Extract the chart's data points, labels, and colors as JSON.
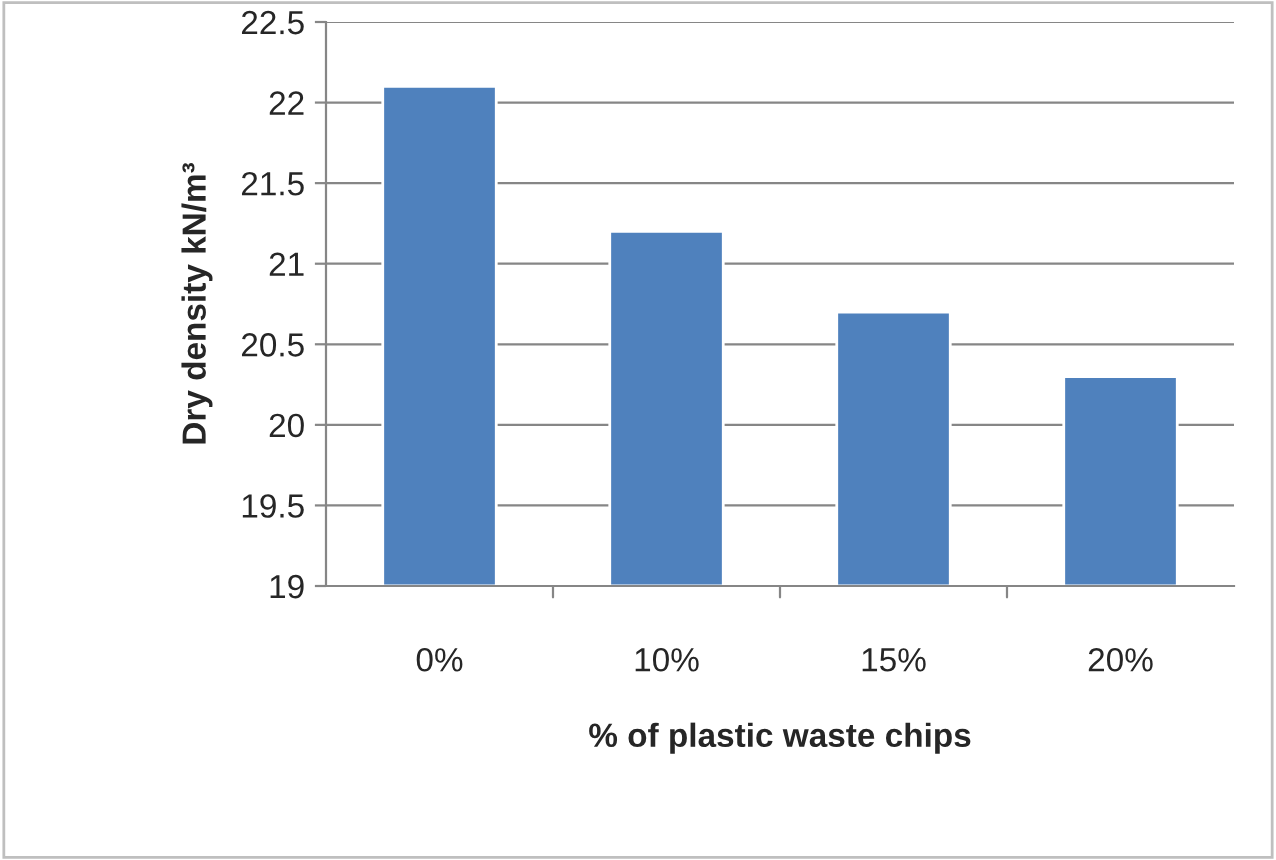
{
  "chart_data": {
    "type": "bar",
    "xlabel": "% of plastic waste chips",
    "ylabel": "Dry density kN/m³",
    "categories": [
      "0%",
      "10%",
      "15%",
      "20%"
    ],
    "series": [
      {
        "color": "#4f81bd",
        "values": [
          22.1,
          21.2,
          20.7,
          20.3
        ]
      }
    ],
    "ylim": [
      19,
      22.5
    ],
    "yticks": [
      19,
      {
        "value": 19.5,
        "label": "19.5"
      },
      20,
      {
        "value": 20.5,
        "label": "20.5"
      },
      21,
      {
        "value": 21.5,
        "label": "21.5"
      },
      22,
      {
        "value": 22.5,
        "label": "22.5"
      }
    ],
    "grid": "y",
    "legend": false
  }
}
